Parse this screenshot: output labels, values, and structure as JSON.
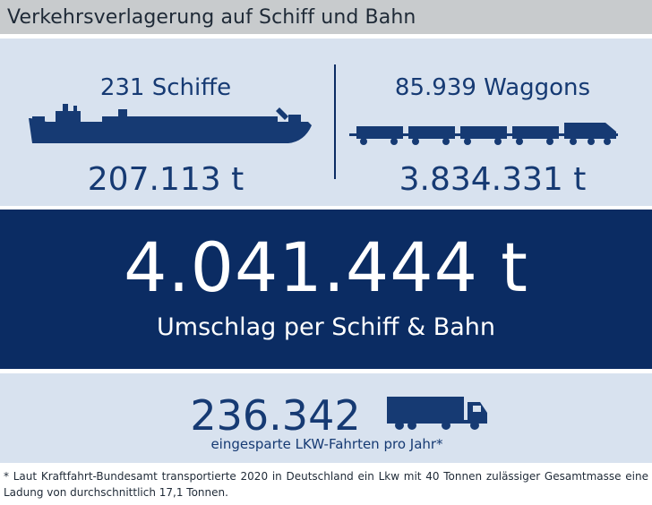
{
  "title": "Verkehrsverlagerung auf Schiff und Bahn",
  "ship": {
    "label": "231 Schiffe",
    "value": "207.113 t",
    "icon": "ship-icon"
  },
  "train": {
    "label": "85.939 Waggons",
    "value": "3.834.331 t",
    "icon": "train-icon"
  },
  "total": {
    "value": "4.041.444 t",
    "caption": "Umschlag per Schiff & Bahn"
  },
  "trucks": {
    "value": "236.342",
    "caption": "eingesparte LKW-Fahrten pro Jahr*",
    "icon": "truck-icon"
  },
  "footnote": "* Laut Kraftfahrt-Bundesamt transportierte 2020 in Deutschland ein Lkw mit 40 Tonnen zulässiger Gesamtmasse eine Ladung von durchschnittlich 17,1 Tonnen.",
  "colors": {
    "navy": "#0b2c63",
    "light_blue": "#d8e2ef",
    "title_gray": "#c8cbcd",
    "text_blue": "#163a73"
  }
}
